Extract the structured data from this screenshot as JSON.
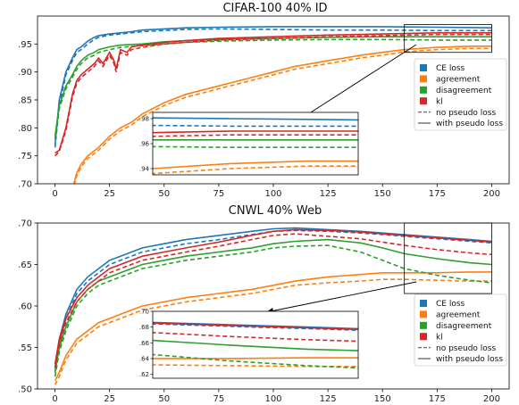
{
  "colors": {
    "ce": "#1f77b4",
    "agreement": "#ff7f0e",
    "disagreement": "#2ca02c",
    "kl": "#d62728",
    "pseudo_legend": "#777777"
  },
  "chart_data": [
    {
      "type": "line",
      "title": "CIFAR-100 40% ID",
      "xlim": [
        -8,
        208
      ],
      "ylim": [
        0.7,
        1.0
      ],
      "xticks": [
        0,
        25,
        50,
        75,
        100,
        125,
        150,
        175,
        200
      ],
      "xtick_labels": [
        "0",
        "25",
        "50",
        "75",
        "100",
        "125",
        "150",
        "175",
        "200"
      ],
      "yticks": [
        0.7,
        0.75,
        0.8,
        0.85,
        0.9,
        0.95
      ],
      "ytick_labels": [
        ".70",
        ".75",
        ".80",
        ".85",
        ".90",
        ".95"
      ],
      "grid": false,
      "legend": {
        "placement": "right-middle",
        "entries": [
          "CE loss",
          "agreement",
          "disagreement",
          "kl",
          "no pseudo loss",
          "with pseudo loss"
        ]
      },
      "inset": {
        "xlim": [
          160,
          200
        ],
        "ylim": [
          0.935,
          0.985
        ],
        "yticks": [
          0.94,
          0.96,
          0.98
        ],
        "ytick_labels": [
          ".94",
          ".96",
          ".98"
        ]
      },
      "series": [
        {
          "name": "CE loss",
          "style": "with pseudo loss",
          "color": "ce",
          "x": [
            0,
            2,
            5,
            8,
            10,
            12,
            15,
            18,
            20,
            25,
            30,
            35,
            40,
            50,
            60,
            75,
            100,
            125,
            150,
            175,
            200
          ],
          "y": [
            0.77,
            0.85,
            0.9,
            0.925,
            0.94,
            0.945,
            0.955,
            0.962,
            0.965,
            0.968,
            0.97,
            0.972,
            0.975,
            0.977,
            0.979,
            0.98,
            0.981,
            0.981,
            0.981,
            0.98,
            0.979
          ]
        },
        {
          "name": "CE loss",
          "style": "no pseudo loss",
          "color": "ce",
          "x": [
            0,
            2,
            5,
            8,
            10,
            12,
            15,
            18,
            20,
            25,
            30,
            35,
            40,
            50,
            60,
            75,
            100,
            125,
            150,
            175,
            200
          ],
          "y": [
            0.765,
            0.84,
            0.895,
            0.92,
            0.935,
            0.94,
            0.95,
            0.958,
            0.962,
            0.966,
            0.968,
            0.97,
            0.972,
            0.974,
            0.976,
            0.977,
            0.976,
            0.975,
            0.975,
            0.974,
            0.974
          ]
        },
        {
          "name": "agreement",
          "style": "with pseudo loss",
          "color": "agreement",
          "x": [
            0,
            5,
            8,
            10,
            12,
            15,
            20,
            25,
            30,
            35,
            40,
            45,
            50,
            60,
            75,
            90,
            100,
            110,
            125,
            140,
            150,
            160,
            175,
            190,
            200
          ],
          "y": [
            0.65,
            0.68,
            0.69,
            0.72,
            0.735,
            0.75,
            0.765,
            0.785,
            0.8,
            0.81,
            0.825,
            0.835,
            0.845,
            0.86,
            0.875,
            0.89,
            0.9,
            0.91,
            0.92,
            0.93,
            0.935,
            0.94,
            0.944,
            0.946,
            0.946
          ]
        },
        {
          "name": "agreement",
          "style": "no pseudo loss",
          "color": "agreement",
          "x": [
            0,
            5,
            8,
            10,
            12,
            15,
            20,
            25,
            30,
            35,
            40,
            45,
            50,
            60,
            75,
            90,
            100,
            110,
            125,
            140,
            150,
            160,
            175,
            190,
            200
          ],
          "y": [
            0.645,
            0.675,
            0.685,
            0.715,
            0.73,
            0.745,
            0.76,
            0.78,
            0.795,
            0.805,
            0.82,
            0.83,
            0.84,
            0.855,
            0.87,
            0.885,
            0.895,
            0.905,
            0.915,
            0.925,
            0.93,
            0.936,
            0.94,
            0.942,
            0.942
          ]
        },
        {
          "name": "disagreement",
          "style": "with pseudo loss",
          "color": "disagreement",
          "x": [
            0,
            2,
            5,
            8,
            10,
            12,
            15,
            18,
            20,
            25,
            30,
            40,
            50,
            60,
            75,
            100,
            125,
            150,
            175,
            200
          ],
          "y": [
            0.785,
            0.84,
            0.875,
            0.895,
            0.91,
            0.92,
            0.93,
            0.935,
            0.94,
            0.945,
            0.948,
            0.95,
            0.954,
            0.956,
            0.958,
            0.96,
            0.962,
            0.963,
            0.963,
            0.963
          ]
        },
        {
          "name": "disagreement",
          "style": "no pseudo loss",
          "color": "disagreement",
          "x": [
            0,
            2,
            5,
            8,
            10,
            12,
            15,
            18,
            20,
            25,
            30,
            40,
            50,
            60,
            75,
            100,
            125,
            150,
            175,
            200
          ],
          "y": [
            0.78,
            0.835,
            0.87,
            0.89,
            0.905,
            0.915,
            0.925,
            0.93,
            0.935,
            0.94,
            0.944,
            0.947,
            0.95,
            0.953,
            0.955,
            0.957,
            0.958,
            0.958,
            0.957,
            0.957
          ]
        },
        {
          "name": "kl",
          "style": "with pseudo loss",
          "color": "kl",
          "x": [
            0,
            2,
            5,
            8,
            10,
            12,
            15,
            18,
            20,
            22,
            25,
            27,
            28,
            30,
            33,
            35,
            40,
            45,
            50,
            60,
            75,
            100,
            125,
            150,
            175,
            200
          ],
          "y": [
            0.755,
            0.76,
            0.8,
            0.86,
            0.885,
            0.895,
            0.905,
            0.915,
            0.925,
            0.915,
            0.935,
            0.92,
            0.905,
            0.94,
            0.935,
            0.945,
            0.948,
            0.95,
            0.953,
            0.956,
            0.96,
            0.963,
            0.966,
            0.968,
            0.97,
            0.97
          ]
        },
        {
          "name": "kl",
          "style": "no pseudo loss",
          "color": "kl",
          "x": [
            0,
            2,
            5,
            8,
            10,
            12,
            15,
            18,
            20,
            22,
            25,
            27,
            28,
            30,
            33,
            35,
            40,
            45,
            50,
            60,
            75,
            100,
            125,
            150,
            175,
            200
          ],
          "y": [
            0.75,
            0.758,
            0.795,
            0.855,
            0.88,
            0.89,
            0.9,
            0.91,
            0.92,
            0.91,
            0.93,
            0.915,
            0.9,
            0.935,
            0.93,
            0.94,
            0.944,
            0.947,
            0.95,
            0.953,
            0.957,
            0.96,
            0.963,
            0.965,
            0.967,
            0.967
          ]
        }
      ]
    },
    {
      "type": "line",
      "title": "CNWL 40% Web",
      "xlim": [
        -8,
        208
      ],
      "ylim": [
        0.5,
        0.7
      ],
      "xticks": [
        0,
        25,
        50,
        75,
        100,
        125,
        150,
        175,
        200
      ],
      "xtick_labels": [
        "0",
        "25",
        "50",
        "75",
        "100",
        "125",
        "150",
        "175",
        "200"
      ],
      "yticks": [
        0.5,
        0.55,
        0.6,
        0.65,
        0.7
      ],
      "ytick_labels": [
        ".50",
        ".55",
        ".60",
        ".65",
        ".70"
      ],
      "grid": false,
      "legend": {
        "placement": "bottom-right",
        "entries": [
          "CE loss",
          "agreement",
          "disagreement",
          "kl",
          "no pseudo loss",
          "with pseudo loss"
        ]
      },
      "inset": {
        "xlim": [
          160,
          200
        ],
        "ylim": [
          0.615,
          0.7
        ],
        "yticks": [
          0.62,
          0.64,
          0.66,
          0.68,
          0.7
        ],
        "ytick_labels": [
          ".62",
          ".64",
          ".66",
          ".68",
          ".70"
        ]
      },
      "series": [
        {
          "name": "CE loss",
          "style": "with pseudo loss",
          "color": "ce",
          "x": [
            0,
            2,
            5,
            10,
            15,
            20,
            25,
            30,
            40,
            50,
            60,
            75,
            90,
            100,
            110,
            125,
            140,
            150,
            160,
            175,
            190,
            200
          ],
          "y": [
            0.525,
            0.56,
            0.59,
            0.62,
            0.635,
            0.645,
            0.655,
            0.66,
            0.67,
            0.675,
            0.68,
            0.685,
            0.69,
            0.693,
            0.694,
            0.692,
            0.69,
            0.688,
            0.686,
            0.683,
            0.68,
            0.678
          ]
        },
        {
          "name": "CE loss",
          "style": "no pseudo loss",
          "color": "ce",
          "x": [
            0,
            2,
            5,
            10,
            15,
            20,
            25,
            30,
            40,
            50,
            60,
            75,
            90,
            100,
            110,
            125,
            140,
            150,
            160,
            175,
            190,
            200
          ],
          "y": [
            0.52,
            0.555,
            0.585,
            0.615,
            0.63,
            0.64,
            0.65,
            0.655,
            0.665,
            0.67,
            0.675,
            0.68,
            0.686,
            0.69,
            0.691,
            0.69,
            0.688,
            0.686,
            0.684,
            0.681,
            0.678,
            0.676
          ]
        },
        {
          "name": "agreement",
          "style": "with pseudo loss",
          "color": "agreement",
          "x": [
            0,
            2,
            5,
            10,
            15,
            20,
            25,
            30,
            40,
            50,
            60,
            75,
            90,
            100,
            110,
            125,
            140,
            150,
            160,
            175,
            190,
            200
          ],
          "y": [
            0.51,
            0.52,
            0.54,
            0.56,
            0.57,
            0.58,
            0.585,
            0.59,
            0.6,
            0.605,
            0.61,
            0.615,
            0.62,
            0.625,
            0.63,
            0.635,
            0.638,
            0.64,
            0.64,
            0.64,
            0.641,
            0.641
          ]
        },
        {
          "name": "agreement",
          "style": "no pseudo loss",
          "color": "agreement",
          "x": [
            0,
            2,
            5,
            10,
            15,
            20,
            25,
            30,
            40,
            50,
            60,
            75,
            90,
            100,
            110,
            125,
            140,
            150,
            160,
            175,
            190,
            200
          ],
          "y": [
            0.505,
            0.515,
            0.535,
            0.555,
            0.565,
            0.575,
            0.58,
            0.585,
            0.595,
            0.6,
            0.605,
            0.61,
            0.615,
            0.62,
            0.625,
            0.628,
            0.63,
            0.632,
            0.632,
            0.631,
            0.63,
            0.63
          ]
        },
        {
          "name": "disagreement",
          "style": "with pseudo loss",
          "color": "disagreement",
          "x": [
            0,
            2,
            5,
            10,
            15,
            20,
            25,
            30,
            40,
            50,
            60,
            75,
            90,
            100,
            110,
            125,
            140,
            150,
            160,
            175,
            190,
            200
          ],
          "y": [
            0.52,
            0.55,
            0.575,
            0.605,
            0.62,
            0.63,
            0.635,
            0.64,
            0.65,
            0.655,
            0.66,
            0.665,
            0.67,
            0.675,
            0.678,
            0.68,
            0.676,
            0.67,
            0.663,
            0.657,
            0.652,
            0.65
          ]
        },
        {
          "name": "disagreement",
          "style": "no pseudo loss",
          "color": "disagreement",
          "x": [
            0,
            2,
            5,
            10,
            15,
            20,
            25,
            30,
            40,
            50,
            60,
            75,
            90,
            100,
            110,
            125,
            140,
            150,
            160,
            175,
            190,
            200
          ],
          "y": [
            0.515,
            0.545,
            0.57,
            0.6,
            0.615,
            0.625,
            0.63,
            0.635,
            0.645,
            0.65,
            0.655,
            0.66,
            0.665,
            0.67,
            0.672,
            0.673,
            0.665,
            0.655,
            0.645,
            0.637,
            0.631,
            0.628
          ]
        },
        {
          "name": "kl",
          "style": "with pseudo loss",
          "color": "kl",
          "x": [
            0,
            2,
            5,
            10,
            15,
            20,
            25,
            30,
            40,
            50,
            60,
            75,
            90,
            100,
            110,
            125,
            140,
            150,
            160,
            175,
            190,
            200
          ],
          "y": [
            0.53,
            0.56,
            0.585,
            0.61,
            0.625,
            0.635,
            0.645,
            0.65,
            0.66,
            0.665,
            0.67,
            0.677,
            0.685,
            0.69,
            0.692,
            0.691,
            0.689,
            0.687,
            0.685,
            0.682,
            0.679,
            0.677
          ]
        },
        {
          "name": "kl",
          "style": "no pseudo loss",
          "color": "kl",
          "x": [
            0,
            2,
            5,
            10,
            15,
            20,
            25,
            30,
            40,
            50,
            60,
            75,
            90,
            100,
            110,
            125,
            140,
            150,
            160,
            175,
            190,
            200
          ],
          "y": [
            0.525,
            0.555,
            0.58,
            0.605,
            0.62,
            0.63,
            0.64,
            0.645,
            0.655,
            0.66,
            0.665,
            0.672,
            0.68,
            0.685,
            0.687,
            0.684,
            0.681,
            0.677,
            0.673,
            0.668,
            0.664,
            0.662
          ]
        }
      ]
    }
  ]
}
